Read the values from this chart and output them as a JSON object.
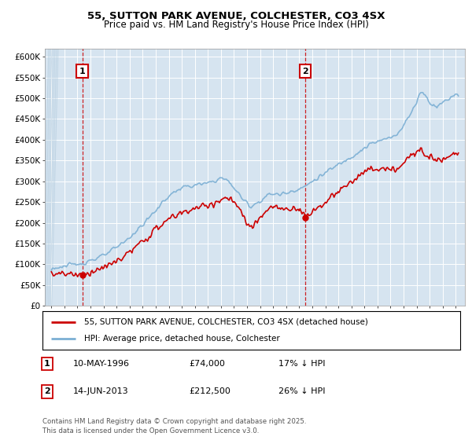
{
  "title1": "55, SUTTON PARK AVENUE, COLCHESTER, CO3 4SX",
  "title2": "Price paid vs. HM Land Registry's House Price Index (HPI)",
  "bg_color": "#d6e4f0",
  "fig_color": "#ffffff",
  "grid_color": "#ffffff",
  "red_line_color": "#cc0000",
  "blue_line_color": "#7bafd4",
  "marker1_date": 1996.37,
  "marker1_price": 74000,
  "marker2_date": 2013.45,
  "marker2_price": 212500,
  "ylabel_ticks": [
    "£0",
    "£50K",
    "£100K",
    "£150K",
    "£200K",
    "£250K",
    "£300K",
    "£350K",
    "£400K",
    "£450K",
    "£500K",
    "£550K",
    "£600K"
  ],
  "ytick_values": [
    0,
    50000,
    100000,
    150000,
    200000,
    250000,
    300000,
    350000,
    400000,
    450000,
    500000,
    550000,
    600000
  ],
  "xmin": 1993.5,
  "xmax": 2025.7,
  "ymin": 0,
  "ymax": 620000,
  "legend_line1": "55, SUTTON PARK AVENUE, COLCHESTER, CO3 4SX (detached house)",
  "legend_line2": "HPI: Average price, detached house, Colchester",
  "annotation1_date": "10-MAY-1996",
  "annotation1_price": "£74,000",
  "annotation1_hpi": "17% ↓ HPI",
  "annotation2_date": "14-JUN-2013",
  "annotation2_price": "£212,500",
  "annotation2_hpi": "26% ↓ HPI",
  "footer": "Contains HM Land Registry data © Crown copyright and database right 2025.\nThis data is licensed under the Open Government Licence v3.0."
}
